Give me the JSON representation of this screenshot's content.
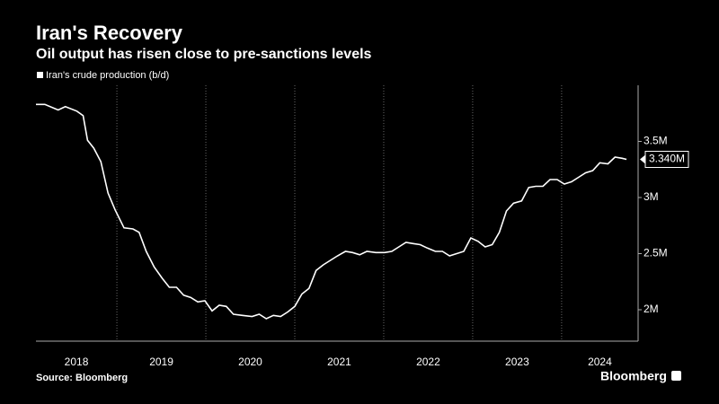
{
  "chart_data": {
    "type": "line",
    "title": "Iran's Recovery",
    "subtitle": "Oil output has risen close to pre-sanctions levels",
    "source": "Source: Bloomberg",
    "brand": "Bloomberg",
    "x": [
      2018.09,
      2018.19,
      2018.34,
      2018.42,
      2018.55,
      2018.62,
      2018.67,
      2018.74,
      2018.82,
      2018.9,
      2018.98,
      2019.08,
      2019.18,
      2019.25,
      2019.33,
      2019.42,
      2019.51,
      2019.59,
      2019.67,
      2019.75,
      2019.83,
      2019.91,
      2019.99,
      2020.07,
      2020.15,
      2020.23,
      2020.31,
      2020.41,
      2020.52,
      2020.6,
      2020.68,
      2020.76,
      2020.84,
      2020.92,
      2021.0,
      2021.08,
      2021.16,
      2021.24,
      2021.32,
      2021.4,
      2021.48,
      2021.57,
      2021.65,
      2021.73,
      2021.81,
      2021.91,
      2022.01,
      2022.09,
      2022.17,
      2022.25,
      2022.33,
      2022.41,
      2022.49,
      2022.58,
      2022.66,
      2022.74,
      2022.82,
      2022.9,
      2022.98,
      2023.06,
      2023.14,
      2023.22,
      2023.3,
      2023.38,
      2023.46,
      2023.55,
      2023.63,
      2023.71,
      2023.79,
      2023.87,
      2023.95,
      2024.03,
      2024.11,
      2024.19,
      2024.27,
      2024.35,
      2024.43,
      2024.52,
      2024.6,
      2024.68,
      2024.73
    ],
    "series": [
      {
        "name": "Iran's crude production (b/d)",
        "color": "#ffffff",
        "values": [
          3.83,
          3.83,
          3.78,
          3.81,
          3.77,
          3.73,
          3.51,
          3.44,
          3.32,
          3.04,
          2.89,
          2.73,
          2.72,
          2.69,
          2.52,
          2.38,
          2.28,
          2.2,
          2.2,
          2.13,
          2.11,
          2.07,
          2.08,
          1.99,
          2.04,
          2.03,
          1.96,
          1.95,
          1.94,
          1.96,
          1.92,
          1.95,
          1.94,
          1.98,
          2.03,
          2.14,
          2.19,
          2.35,
          2.4,
          2.44,
          2.48,
          2.52,
          2.51,
          2.49,
          2.52,
          2.51,
          2.51,
          2.52,
          2.56,
          2.6,
          2.59,
          2.58,
          2.55,
          2.52,
          2.52,
          2.48,
          2.5,
          2.52,
          2.64,
          2.61,
          2.56,
          2.58,
          2.69,
          2.88,
          2.95,
          2.97,
          3.09,
          3.1,
          3.1,
          3.16,
          3.16,
          3.12,
          3.14,
          3.18,
          3.22,
          3.24,
          3.31,
          3.3,
          3.36,
          3.35,
          3.34
        ],
        "value_labels": [
          null,
          null,
          null,
          null,
          null,
          null,
          null,
          null,
          null,
          null,
          null,
          null,
          null,
          null,
          null,
          null,
          null,
          null,
          null,
          null,
          null,
          null,
          null,
          null,
          null,
          null,
          null,
          null,
          null,
          null,
          null,
          null,
          null,
          null,
          null,
          null,
          null,
          null,
          null,
          null,
          null,
          null,
          null,
          null,
          null,
          null,
          null,
          null,
          null,
          null,
          null,
          null,
          null,
          null,
          null,
          null,
          null,
          null,
          null,
          null,
          null,
          null,
          null,
          null,
          null,
          null,
          null,
          null,
          null,
          null,
          null,
          null,
          null,
          null,
          null,
          null,
          null,
          null,
          null,
          null,
          "3.340M"
        ]
      }
    ],
    "xlim": [
      2018.09,
      2024.86
    ],
    "xticks": [
      2018,
      2019,
      2020,
      2021,
      2022,
      2023,
      2024
    ],
    "ylim": [
      1.72,
      4.0
    ],
    "yticks": [
      {
        "value": 2,
        "label": "2M"
      },
      {
        "value": 2.5,
        "label": "2.5M"
      },
      {
        "value": 3,
        "label": "3M"
      },
      {
        "value": 3.5,
        "label": "3.5M"
      }
    ],
    "grid": true
  }
}
